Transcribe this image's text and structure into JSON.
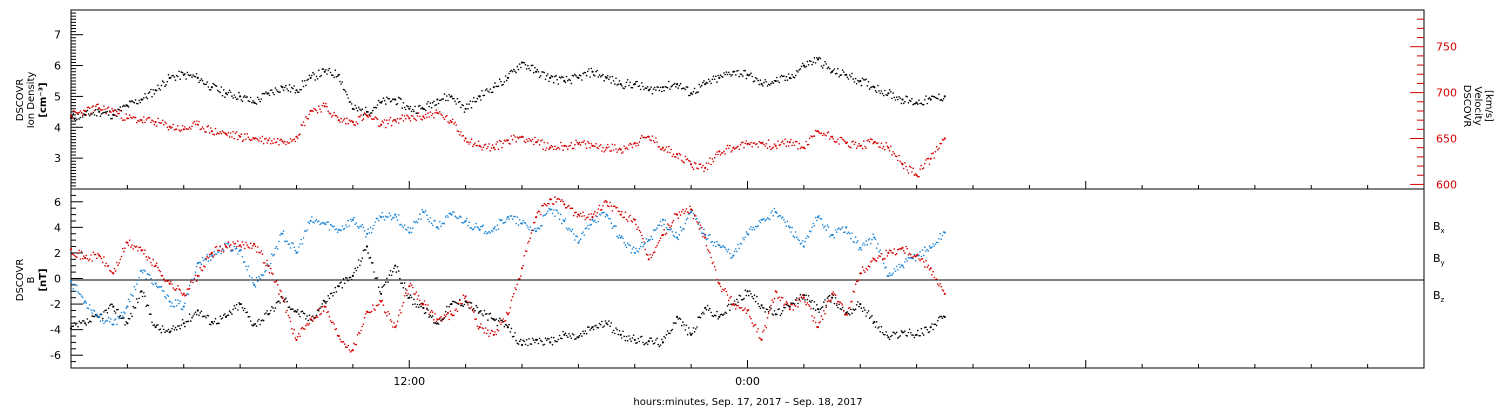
{
  "chart_data": [
    {
      "type": "scatter",
      "panel": "density-velocity",
      "ylabel_left": [
        "DSCOVR",
        "Ion Density",
        "[cm⁻³]"
      ],
      "ylabel_right": [
        "DSCOVR",
        "Velocity",
        "[km/s]"
      ],
      "yticks_left": [
        "3",
        "4",
        "5",
        "6",
        "7"
      ],
      "yticks_right": [
        "600",
        "650",
        "700",
        "750"
      ],
      "ylim_left": [
        2.0,
        7.8
      ],
      "ylim_right": [
        595,
        790
      ],
      "series": [
        {
          "color": "#000000",
          "axis": "left",
          "x_hours": [
            0,
            0.5,
            1,
            1.5,
            2,
            2.5,
            3,
            3.5,
            4,
            4.5,
            5,
            5.5,
            6,
            6.5,
            7,
            7.5,
            8,
            8.5,
            9,
            9.5,
            10,
            10.5,
            11,
            11.5,
            12,
            12.5,
            13,
            13.5,
            14,
            14.5,
            15,
            15.5,
            16,
            16.5,
            17,
            17.5,
            18,
            18.5,
            19,
            19.5,
            20,
            20.5,
            21,
            21.5,
            22,
            22.5,
            23,
            23.5,
            24,
            24.5,
            25,
            25.5,
            26,
            26.5,
            27,
            27.5,
            28,
            28.5,
            29,
            29.5,
            30,
            30.5,
            31
          ],
          "values": [
            4.3,
            4.4,
            4.5,
            4.4,
            4.7,
            4.9,
            5.2,
            5.6,
            5.7,
            5.6,
            5.3,
            5.1,
            5.0,
            4.8,
            5.1,
            5.3,
            5.2,
            5.6,
            5.8,
            5.7,
            4.6,
            4.5,
            4.8,
            4.9,
            4.6,
            4.6,
            4.9,
            5.0,
            4.6,
            5.0,
            5.3,
            5.6,
            6.1,
            5.8,
            5.6,
            5.5,
            5.6,
            5.8,
            5.6,
            5.4,
            5.4,
            5.2,
            5.3,
            5.4,
            5.1,
            5.4,
            5.6,
            5.8,
            5.7,
            5.4,
            5.5,
            5.6,
            6.0,
            6.2,
            5.8,
            5.7,
            5.5,
            5.3,
            5.1,
            4.9,
            4.8,
            4.9,
            5.0
          ]
        },
        {
          "color": "#d40000",
          "axis": "right",
          "x_hours": [
            0,
            0.5,
            1,
            1.5,
            2,
            2.5,
            3,
            3.5,
            4,
            4.5,
            5,
            5.5,
            6,
            6.5,
            7,
            7.5,
            8,
            8.5,
            9,
            9.5,
            10,
            10.5,
            11,
            11.5,
            12,
            12.5,
            13,
            13.5,
            14,
            14.5,
            15,
            15.5,
            16,
            16.5,
            17,
            17.5,
            18,
            18.5,
            19,
            19.5,
            20,
            20.5,
            21,
            21.5,
            22,
            22.5,
            23,
            23.5,
            24,
            24.5,
            25,
            25.5,
            26,
            26.5,
            27,
            27.5,
            28,
            28.5,
            29,
            29.5,
            30,
            30.5,
            31
          ],
          "values": [
            675,
            680,
            683,
            680,
            672,
            670,
            668,
            663,
            660,
            665,
            658,
            655,
            652,
            650,
            648,
            647,
            652,
            680,
            685,
            670,
            668,
            675,
            665,
            670,
            672,
            674,
            678,
            668,
            650,
            642,
            640,
            648,
            652,
            646,
            640,
            642,
            644,
            642,
            640,
            638,
            645,
            652,
            640,
            633,
            622,
            618,
            636,
            640,
            644,
            645,
            642,
            646,
            640,
            658,
            652,
            645,
            642,
            646,
            640,
            622,
            610,
            628,
            650
          ]
        }
      ]
    },
    {
      "type": "scatter",
      "panel": "magnetic-field",
      "ylabel_left": [
        "DSCOVR",
        "B",
        "[nT]"
      ],
      "yticks_left": [
        "-6",
        "-4",
        "-2",
        "0",
        "2",
        "4",
        "6"
      ],
      "ylim_left": [
        -7.0,
        7.0
      ],
      "zero_line": true,
      "series": [
        {
          "name": "Bx",
          "color": "#000000",
          "x_hours": [
            0,
            0.5,
            1,
            1.5,
            2,
            2.5,
            3,
            3.5,
            4,
            4.5,
            5,
            5.5,
            6,
            6.5,
            7,
            7.5,
            8,
            8.5,
            9,
            9.5,
            10,
            10.5,
            11,
            11.5,
            12,
            12.5,
            13,
            13.5,
            14,
            14.5,
            15,
            15.5,
            16,
            16.5,
            17,
            17.5,
            18,
            18.5,
            19,
            19.5,
            20,
            20.5,
            21,
            21.5,
            22,
            22.5,
            23,
            23.5,
            24,
            24.5,
            25,
            25.5,
            26,
            26.5,
            27,
            27.5,
            28,
            28.5,
            29,
            29.5,
            30,
            30.5,
            31
          ],
          "values": [
            -3.9,
            -3.5,
            -3.0,
            -2.2,
            -3.5,
            -1.0,
            -3.8,
            -4.2,
            -3.5,
            -2.5,
            -3.4,
            -3.0,
            -2.0,
            -3.6,
            -2.8,
            -1.5,
            -2.6,
            -3.2,
            -1.8,
            -0.6,
            0.2,
            2.5,
            -1.2,
            1.0,
            -1.5,
            -2.3,
            -3.5,
            -2.0,
            -1.8,
            -2.6,
            -3.2,
            -3.8,
            -5.2,
            -4.8,
            -5.0,
            -4.4,
            -4.6,
            -3.8,
            -3.5,
            -4.4,
            -4.8,
            -4.9,
            -5.0,
            -3.0,
            -4.4,
            -2.3,
            -3.0,
            -2.0,
            -1.0,
            -2.1,
            -2.8,
            -2.2,
            -1.3,
            -2.4,
            -1.5,
            -2.7,
            -2.0,
            -3.4,
            -4.6,
            -4.2,
            -4.4,
            -3.8,
            -3.0
          ]
        },
        {
          "name": "By",
          "color": "#1a84d6",
          "x_hours": [
            0,
            0.5,
            1,
            1.5,
            2,
            2.5,
            3,
            3.5,
            4,
            4.5,
            5,
            5.5,
            6,
            6.5,
            7,
            7.5,
            8,
            8.5,
            9,
            9.5,
            10,
            10.5,
            11,
            11.5,
            12,
            12.5,
            13,
            13.5,
            14,
            14.5,
            15,
            15.5,
            16,
            16.5,
            17,
            17.5,
            18,
            18.5,
            19,
            19.5,
            20,
            20.5,
            21,
            21.5,
            22,
            22.5,
            23,
            23.5,
            24,
            24.5,
            25,
            25.5,
            26,
            26.5,
            27,
            27.5,
            28,
            28.5,
            29,
            29.5,
            30,
            30.5,
            31
          ],
          "values": [
            -0.2,
            -1.8,
            -3.0,
            -3.6,
            -2.2,
            0.6,
            -0.4,
            -1.8,
            -2.2,
            1.2,
            1.8,
            2.5,
            2.2,
            -0.5,
            1.0,
            3.5,
            2.0,
            4.5,
            4.3,
            3.8,
            4.6,
            3.5,
            4.8,
            5.0,
            3.6,
            5.2,
            4.0,
            5.0,
            4.5,
            3.8,
            3.9,
            4.8,
            4.3,
            3.7,
            5.4,
            4.5,
            2.8,
            4.6,
            5.0,
            3.2,
            2.0,
            3.0,
            4.6,
            3.2,
            5.2,
            3.4,
            2.6,
            1.8,
            3.5,
            4.6,
            5.2,
            4.0,
            2.5,
            4.8,
            3.4,
            4.0,
            2.4,
            3.2,
            0.2,
            1.0,
            1.8,
            2.4,
            3.6
          ]
        },
        {
          "name": "Bz",
          "color": "#d40000",
          "x_hours": [
            0,
            0.5,
            1,
            1.5,
            2,
            2.5,
            3,
            3.5,
            4,
            4.5,
            5,
            5.5,
            6,
            6.5,
            7,
            7.5,
            8,
            8.5,
            9,
            9.5,
            10,
            10.5,
            11,
            11.5,
            12,
            12.5,
            13,
            13.5,
            14,
            14.5,
            15,
            15.5,
            16,
            16.5,
            17,
            17.5,
            18,
            18.5,
            19,
            19.5,
            20,
            20.5,
            21,
            21.5,
            22,
            22.5,
            23,
            23.5,
            24,
            24.5,
            25,
            25.5,
            26,
            26.5,
            27,
            27.5,
            28,
            28.5,
            29,
            29.5,
            30,
            30.5,
            31
          ],
          "values": [
            2.3,
            1.6,
            1.8,
            0.4,
            2.8,
            2.2,
            1.0,
            -0.4,
            -1.2,
            0.2,
            2.0,
            2.5,
            2.6,
            2.7,
            1.0,
            -1.5,
            -4.8,
            -3.2,
            -2.2,
            -4.5,
            -5.6,
            -2.6,
            -1.8,
            -3.8,
            -0.6,
            -2.0,
            -3.2,
            -2.8,
            -1.4,
            -3.8,
            -4.4,
            -2.8,
            0.8,
            4.8,
            6.2,
            5.8,
            5.0,
            4.8,
            6.0,
            5.0,
            4.6,
            1.5,
            3.4,
            5.0,
            5.4,
            3.2,
            -0.4,
            -2.0,
            -2.5,
            -4.8,
            -1.0,
            -2.4,
            -1.5,
            -3.8,
            -1.2,
            -2.8,
            0.4,
            1.5,
            2.0,
            2.4,
            1.8,
            0.8,
            -1.2
          ]
        }
      ]
    }
  ],
  "x_axis": {
    "ticks": [
      {
        "hours": 12,
        "label": "12:00"
      },
      {
        "hours": 24,
        "label": "0:00"
      }
    ],
    "xlim_hours": [
      0,
      48
    ],
    "title": "hours:minutes, Sep. 17, 2017 – Sep. 18, 2017"
  },
  "legend_b": {
    "entries": [
      {
        "base": "B",
        "sub": "x",
        "color": "#000000"
      },
      {
        "base": "B",
        "sub": "y",
        "color": "#1a84d6"
      },
      {
        "base": "B",
        "sub": "z",
        "color": "#d40000"
      }
    ]
  },
  "colors": {
    "accent_red": "#d40000",
    "accent_blue": "#1a84d6",
    "axis": "#000000"
  }
}
